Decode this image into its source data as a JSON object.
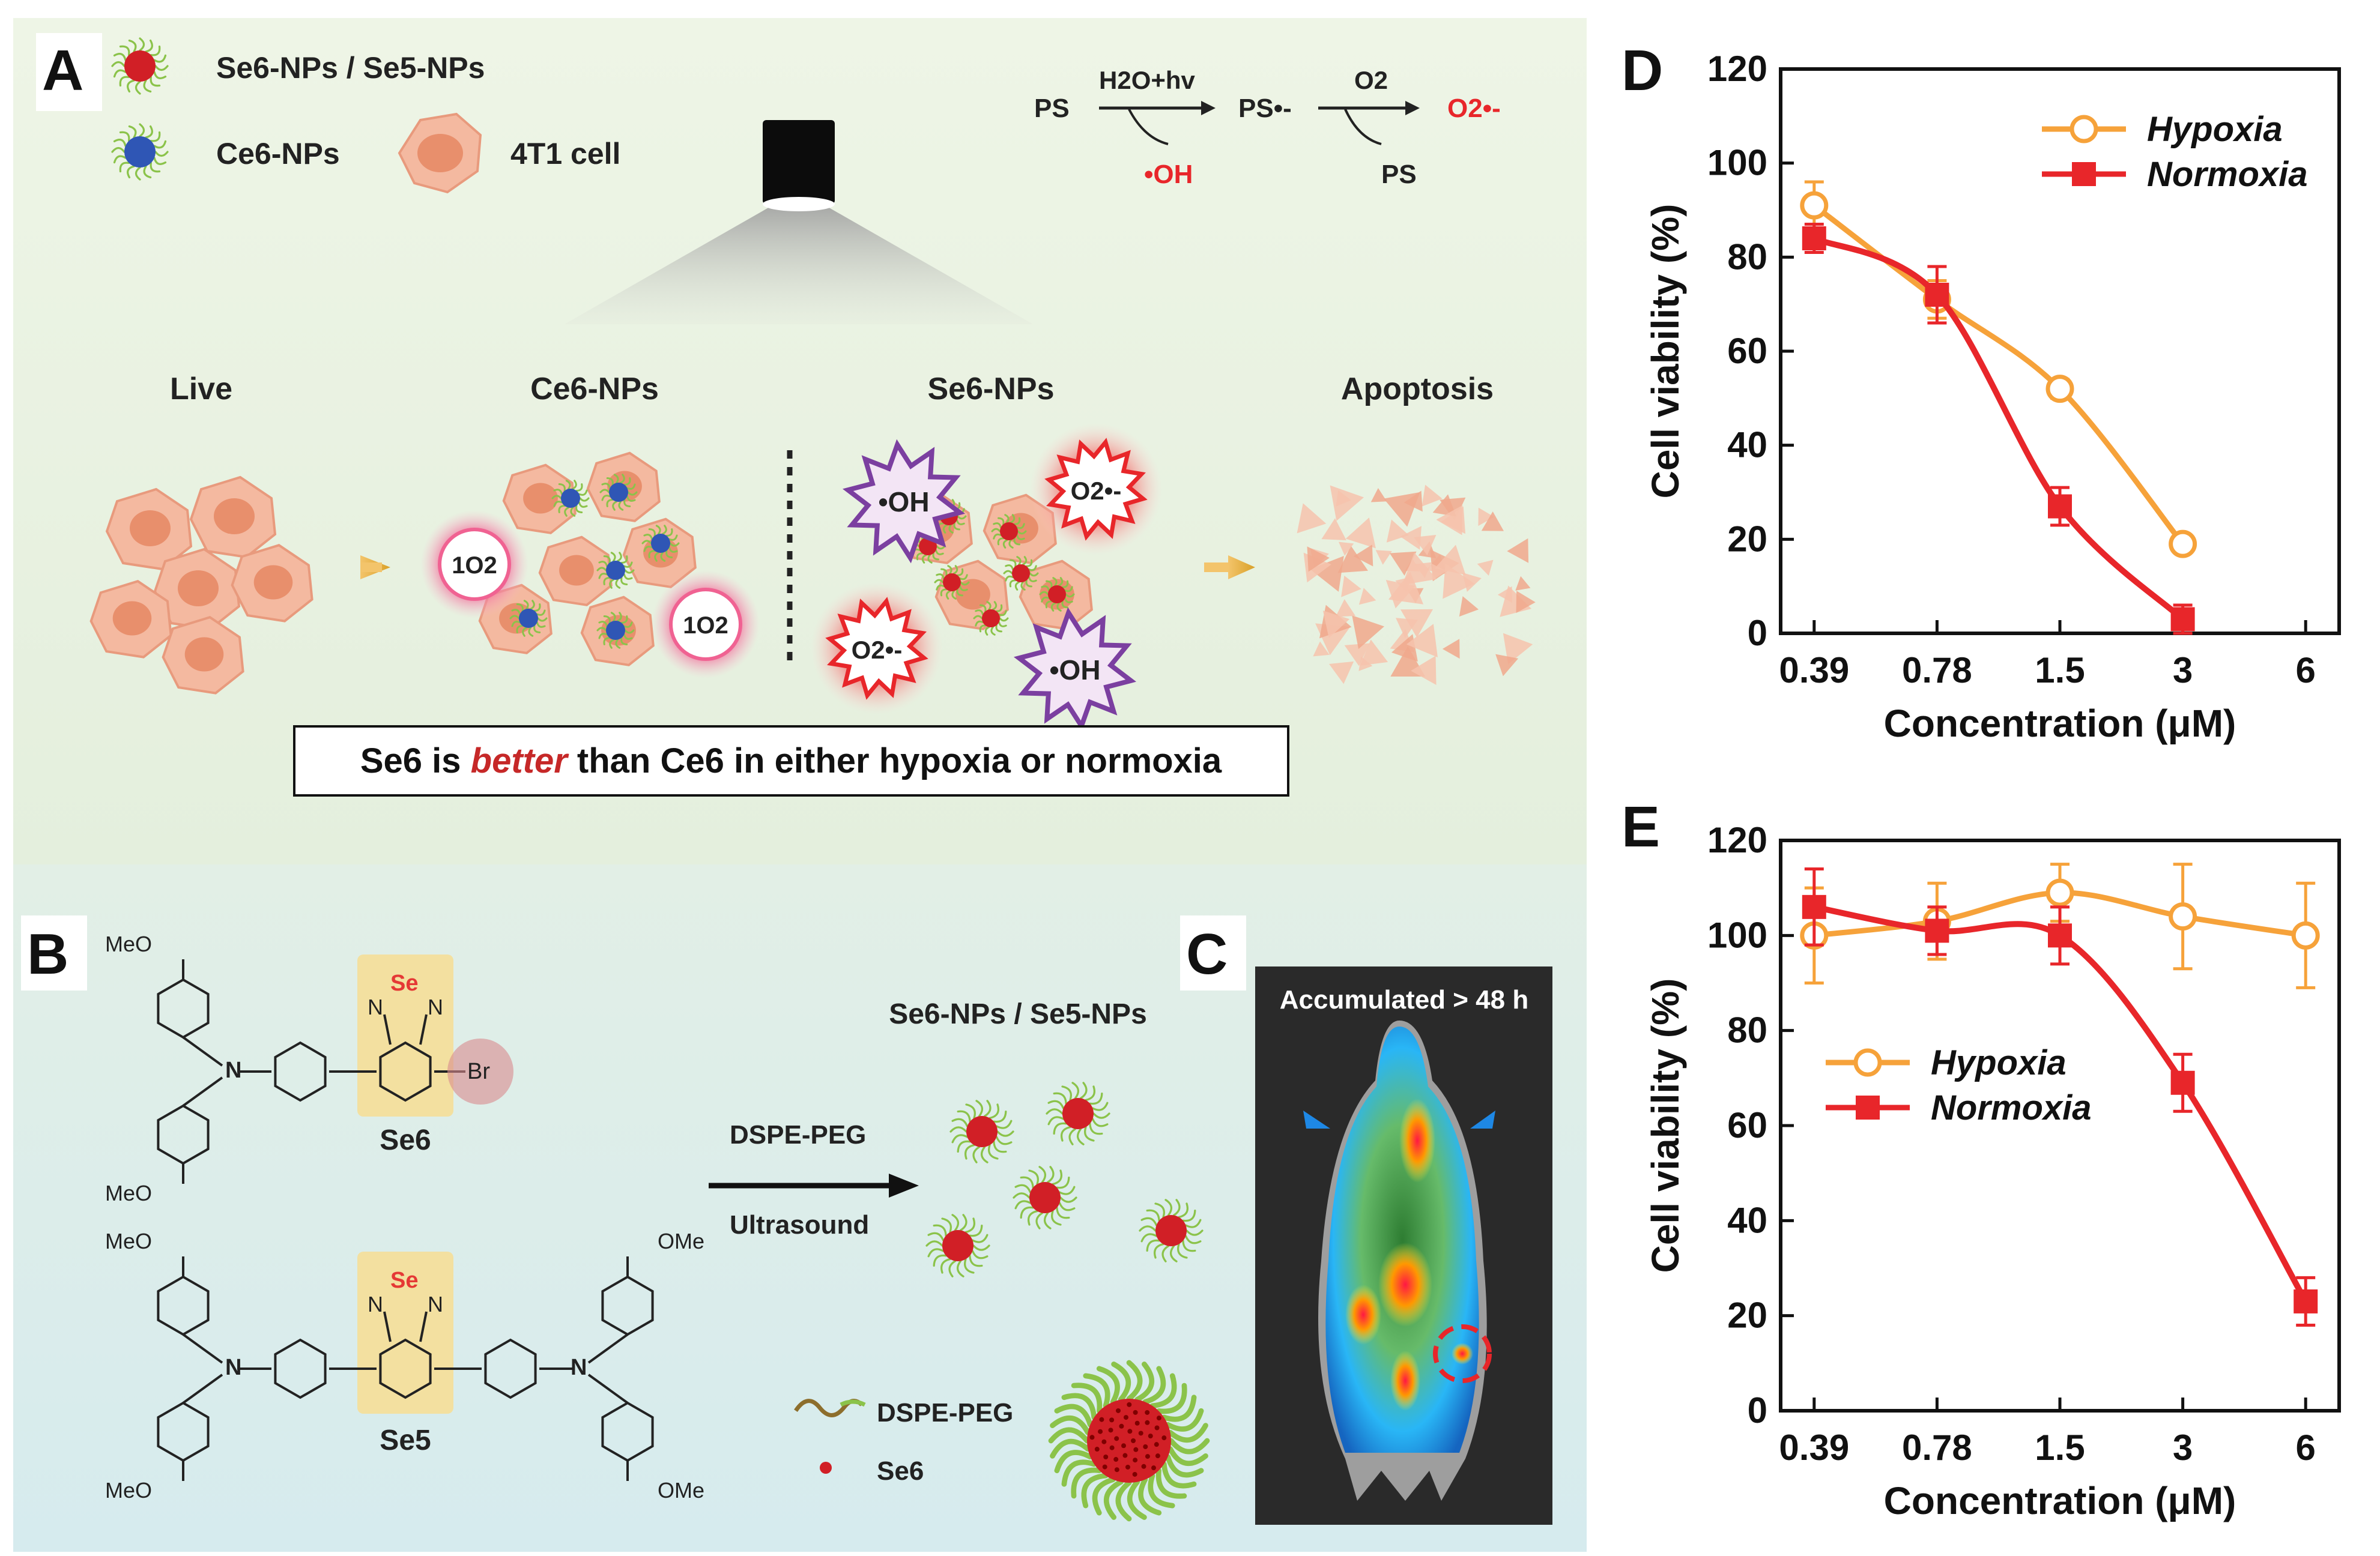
{
  "panel_a": {
    "label": "A",
    "legend": {
      "np_red": "Se6-NPs / Se5-NPs",
      "np_blue": "Ce6-NPs",
      "cell": "4T1 cell"
    },
    "reaction": {
      "ps": "PS",
      "step1_top": "H2O+hv",
      "ps_radical": "PS•-",
      "step2_top": "O2",
      "superoxide": "O2•-",
      "hydroxyl": "•OH",
      "ps_regenerated": "PS"
    },
    "groups": {
      "live": "Live",
      "ce6": "Ce6-NPs",
      "se6": "Se6-NPs",
      "apoptosis": "Apoptosis"
    },
    "ros": {
      "singlet": "1O2",
      "superoxide": "O2•-",
      "hydroxyl": "•OH"
    },
    "conclusion": {
      "pre": "Se6 is ",
      "emph": "better",
      "post": " than Ce6 in either hypoxia or normoxia"
    }
  },
  "panel_b": {
    "label": "B",
    "se6_name": "Se6",
    "se5_name": "Se5",
    "atoms": {
      "meo": "MeO",
      "ome": "OMe",
      "se": "Se",
      "n": "N",
      "br": "Br"
    },
    "arrow_top": "DSPE-PEG",
    "arrow_bottom": "Ultrasound",
    "np_title": "Se6-NPs / Se5-NPs",
    "legend_peg": "DSPE-PEG",
    "legend_se6": "Se6"
  },
  "panel_c": {
    "label": "C",
    "caption": "Accumulated > 48 h"
  },
  "colors": {
    "hypoxia": "#f6a23a",
    "normoxia": "#e8262a",
    "peg_green": "#8bc34a",
    "np_red": "#d11f26",
    "np_blue": "#2f56b5",
    "cell_fill": "#f4b9a0",
    "se_red": "#e53935",
    "ros_pink": "#f06292",
    "oh_purple": "#7b3fa0"
  },
  "chart_data": [
    {
      "panel": "D",
      "type": "line",
      "title": "",
      "xlabel": "Concentration (μM)",
      "ylabel": "Cell viability (%)",
      "categories": [
        "0.39",
        "0.78",
        "1.5",
        "3",
        "6"
      ],
      "ylim": [
        0,
        120
      ],
      "yticks": [
        "0",
        "20",
        "40",
        "60",
        "80",
        "100",
        "120"
      ],
      "legend_position": "top-right",
      "series": [
        {
          "name": "Hypoxia",
          "marker": "open-circle",
          "x": [
            "0.39",
            "0.78",
            "1.5",
            "3"
          ],
          "values": [
            91,
            71,
            52,
            19
          ],
          "errors": [
            5,
            4,
            2,
            1.5
          ]
        },
        {
          "name": "Normoxia",
          "marker": "filled-square",
          "x": [
            "0.39",
            "0.78",
            "1.5",
            "3"
          ],
          "values": [
            84,
            72,
            27,
            3
          ],
          "errors": [
            3,
            6,
            4,
            3
          ]
        }
      ]
    },
    {
      "panel": "E",
      "type": "line",
      "title": "",
      "xlabel": "Concentration  (μM)",
      "ylabel": "Cell viability (%)",
      "categories": [
        "0.39",
        "0.78",
        "1.5",
        "3",
        "6"
      ],
      "ylim": [
        0,
        120
      ],
      "yticks": [
        "0",
        "20",
        "40",
        "60",
        "80",
        "100",
        "120"
      ],
      "legend_position": "center-left",
      "series": [
        {
          "name": "Hypoxia",
          "marker": "open-circle",
          "x": [
            "0.39",
            "0.78",
            "1.5",
            "3",
            "6"
          ],
          "values": [
            100,
            103,
            109,
            104,
            100
          ],
          "errors": [
            10,
            8,
            6,
            11,
            11
          ]
        },
        {
          "name": "Normoxia",
          "marker": "filled-square",
          "x": [
            "0.39",
            "0.78",
            "1.5",
            "3",
            "6"
          ],
          "values": [
            106,
            101,
            100,
            69,
            23
          ],
          "errors": [
            8,
            5,
            6,
            6,
            5
          ]
        }
      ]
    }
  ]
}
